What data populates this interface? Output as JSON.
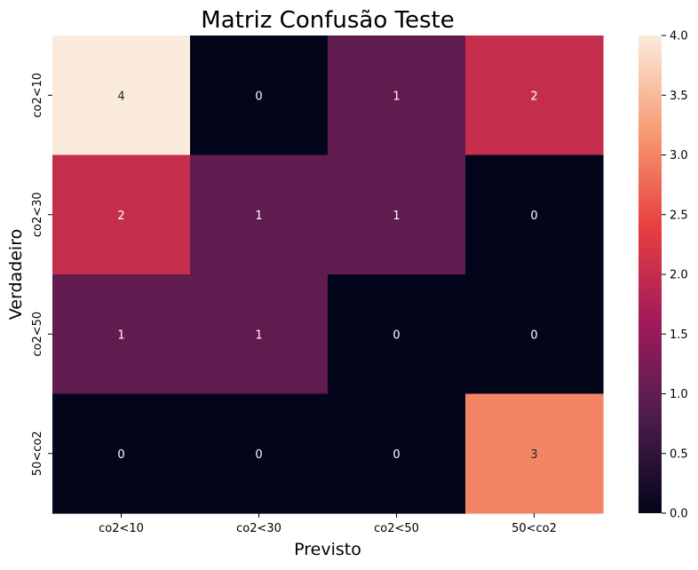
{
  "chart_data": {
    "type": "heatmap",
    "title": "Matriz Confusão Teste",
    "xlabel": "Previsto",
    "ylabel": "Verdadeiro",
    "x_categories": [
      "co2<10",
      "co2<30",
      "co2<50",
      "50<co2"
    ],
    "y_categories": [
      "co2<10",
      "co2<30",
      "co2<50",
      "50<co2"
    ],
    "values": [
      [
        4,
        0,
        1,
        2
      ],
      [
        2,
        1,
        1,
        0
      ],
      [
        1,
        1,
        0,
        0
      ],
      [
        0,
        0,
        0,
        3
      ]
    ],
    "colorbar": {
      "min": 0.0,
      "max": 4.0,
      "ticks": [
        "0.0",
        "0.5",
        "1.0",
        "1.5",
        "2.0",
        "2.5",
        "3.0",
        "3.5",
        "4.0"
      ],
      "colormap": "rocket",
      "colors": [
        "#03051a",
        "#4c1d4b",
        "#a11a5b",
        "#e83f3f",
        "#f69c73",
        "#faebdd"
      ]
    },
    "cell_annotations": true,
    "grid": false
  }
}
